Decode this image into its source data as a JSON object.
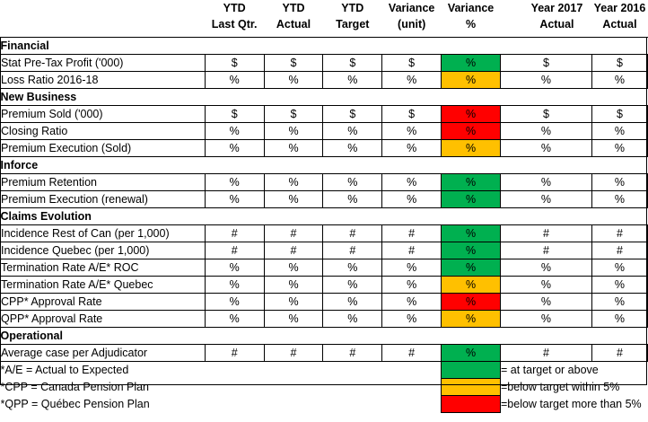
{
  "headers": [
    {
      "line1": "YTD",
      "line2": "Last Qtr."
    },
    {
      "line1": "YTD",
      "line2": "Actual"
    },
    {
      "line1": "YTD",
      "line2": "Target"
    },
    {
      "line1": "Variance",
      "line2": "(unit)"
    },
    {
      "line1": "Variance",
      "line2": "%"
    },
    {
      "line1": "Year 2017",
      "line2": "Actual"
    },
    {
      "line1": "Year 2016",
      "line2": "Actual"
    }
  ],
  "sections": [
    {
      "title": "Financial",
      "rows": [
        {
          "label": "Stat Pre-Tax Profit ('000)",
          "ytd_last_qtr": "$",
          "ytd_actual": "$",
          "ytd_target": "$",
          "variance_unit": "$",
          "variance_pct": "%",
          "status": "green",
          "year2017": "$",
          "year2016": "$"
        },
        {
          "label": "Loss Ratio 2016-18",
          "ytd_last_qtr": "%",
          "ytd_actual": "%",
          "ytd_target": "%",
          "variance_unit": "%",
          "variance_pct": "%",
          "status": "amber",
          "year2017": "%",
          "year2016": "%"
        }
      ]
    },
    {
      "title": "New Business",
      "rows": [
        {
          "label": "Premium Sold ('000)",
          "ytd_last_qtr": "$",
          "ytd_actual": "$",
          "ytd_target": "$",
          "variance_unit": "$",
          "variance_pct": "%",
          "status": "red",
          "year2017": "$",
          "year2016": "$"
        },
        {
          "label": "Closing Ratio",
          "ytd_last_qtr": "%",
          "ytd_actual": "%",
          "ytd_target": "%",
          "variance_unit": "%",
          "variance_pct": "%",
          "status": "red",
          "year2017": "%",
          "year2016": "%"
        },
        {
          "label": "Premium Execution (Sold)",
          "ytd_last_qtr": "%",
          "ytd_actual": "%",
          "ytd_target": "%",
          "variance_unit": "%",
          "variance_pct": "%",
          "status": "amber",
          "year2017": "%",
          "year2016": "%"
        }
      ]
    },
    {
      "title": "Inforce",
      "rows": [
        {
          "label": "Premium Retention",
          "ytd_last_qtr": "%",
          "ytd_actual": "%",
          "ytd_target": "%",
          "variance_unit": "%",
          "variance_pct": "%",
          "status": "green",
          "year2017": "%",
          "year2016": "%"
        },
        {
          "label": "Premium Execution (renewal)",
          "ytd_last_qtr": "%",
          "ytd_actual": "%",
          "ytd_target": "%",
          "variance_unit": "%",
          "variance_pct": "%",
          "status": "green",
          "year2017": "%",
          "year2016": "%"
        }
      ]
    },
    {
      "title": "Claims Evolution",
      "rows": [
        {
          "label": "Incidence Rest of Can (per 1,000)",
          "ytd_last_qtr": "#",
          "ytd_actual": "#",
          "ytd_target": "#",
          "variance_unit": "#",
          "variance_pct": "%",
          "status": "green",
          "year2017": "#",
          "year2016": "#"
        },
        {
          "label": "Incidence Quebec (per 1,000)",
          "ytd_last_qtr": "#",
          "ytd_actual": "#",
          "ytd_target": "#",
          "variance_unit": "#",
          "variance_pct": "%",
          "status": "green",
          "year2017": "#",
          "year2016": "#"
        },
        {
          "label": "Termination Rate A/E* ROC",
          "ytd_last_qtr": "%",
          "ytd_actual": "%",
          "ytd_target": "%",
          "variance_unit": "%",
          "variance_pct": "%",
          "status": "green",
          "year2017": "%",
          "year2016": "%"
        },
        {
          "label": "Termination Rate A/E* Quebec",
          "ytd_last_qtr": "%",
          "ytd_actual": "%",
          "ytd_target": "%",
          "variance_unit": "%",
          "variance_pct": "%",
          "status": "amber",
          "year2017": "%",
          "year2016": "%"
        },
        {
          "label": "CPP* Approval Rate",
          "ytd_last_qtr": "%",
          "ytd_actual": "%",
          "ytd_target": "%",
          "variance_unit": "%",
          "variance_pct": "%",
          "status": "red",
          "year2017": "%",
          "year2016": "%"
        },
        {
          "label": "QPP* Approval Rate",
          "ytd_last_qtr": "%",
          "ytd_actual": "%",
          "ytd_target": "%",
          "variance_unit": "%",
          "variance_pct": "%",
          "status": "amber",
          "year2017": "%",
          "year2016": "%"
        }
      ]
    },
    {
      "title": "Operational",
      "rows": [
        {
          "label": "Average case per Adjudicator",
          "ytd_last_qtr": "#",
          "ytd_actual": "#",
          "ytd_target": "#",
          "variance_unit": "#",
          "variance_pct": "%",
          "status": "green",
          "year2017": "#",
          "year2016": "#"
        }
      ]
    }
  ],
  "footnotes": [
    {
      "text": "*A/E = Actual to Expected",
      "legend_status": "green",
      "legend_text": "= at target or above"
    },
    {
      "text": "*CPP = Canada Pension Plan",
      "legend_status": "amber",
      "legend_text": "=below target within 5%"
    },
    {
      "text": "*QPP = Québec Pension Plan",
      "legend_status": "red",
      "legend_text": "=below target more than 5%"
    }
  ],
  "status_colors": {
    "green": "#00b050",
    "amber": "#ffc000",
    "red": "#ff0000"
  }
}
